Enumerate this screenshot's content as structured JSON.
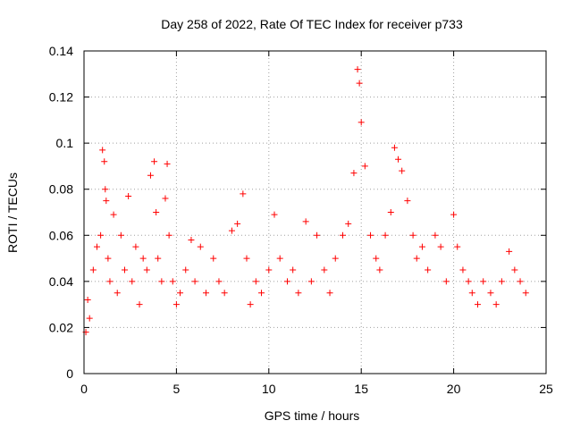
{
  "chart_data": {
    "type": "scatter",
    "title": "Day 258 of 2022, Rate Of TEC Index for receiver p733",
    "xlabel": "GPS time / hours",
    "ylabel": "ROTI / TECUs",
    "xlim": [
      0,
      25
    ],
    "ylim": [
      0,
      0.14
    ],
    "x_ticks": [
      "0",
      "5",
      "10",
      "15",
      "20",
      "25"
    ],
    "y_ticks": [
      "0",
      "0.02",
      "0.04",
      "0.06",
      "0.08",
      "0.1",
      "0.12",
      "0.14"
    ],
    "grid": true,
    "marker": "plus",
    "color": "#ff0000",
    "series": [
      {
        "x": [
          0.1,
          0.2,
          0.3,
          0.5,
          0.7,
          0.9,
          1.0,
          1.1,
          1.15,
          1.2,
          1.3,
          1.4,
          1.6,
          1.8,
          2.0,
          2.2,
          2.4,
          2.6,
          2.8,
          3.0,
          3.2,
          3.4,
          3.6,
          3.8,
          3.9,
          4.0,
          4.2,
          4.4,
          4.5,
          4.6,
          4.8,
          5.0,
          5.2,
          5.5,
          5.8,
          6.0,
          6.3,
          6.6,
          7.0,
          7.3,
          7.6,
          8.0,
          8.3,
          8.6,
          8.8,
          9.0,
          9.3,
          9.6,
          10.0,
          10.3,
          10.6,
          11.0,
          11.3,
          11.6,
          12.0,
          12.3,
          12.6,
          13.0,
          13.3,
          13.6,
          14.0,
          14.3,
          14.6,
          14.8,
          14.9,
          15.0,
          15.2,
          15.5,
          15.8,
          16.0,
          16.3,
          16.6,
          16.8,
          17.0,
          17.2,
          17.5,
          17.8,
          18.0,
          18.3,
          18.6,
          19.0,
          19.3,
          19.6,
          20.0,
          20.2,
          20.5,
          20.8,
          21.0,
          21.3,
          21.6,
          22.0,
          22.3,
          22.6,
          23.0,
          23.3,
          23.6,
          23.9
        ],
        "y": [
          0.018,
          0.032,
          0.024,
          0.045,
          0.055,
          0.06,
          0.097,
          0.092,
          0.08,
          0.075,
          0.05,
          0.04,
          0.069,
          0.035,
          0.06,
          0.045,
          0.077,
          0.04,
          0.055,
          0.03,
          0.05,
          0.045,
          0.086,
          0.092,
          0.07,
          0.05,
          0.04,
          0.076,
          0.091,
          0.06,
          0.04,
          0.03,
          0.035,
          0.045,
          0.058,
          0.04,
          0.055,
          0.035,
          0.05,
          0.04,
          0.035,
          0.062,
          0.065,
          0.078,
          0.05,
          0.03,
          0.04,
          0.035,
          0.045,
          0.069,
          0.05,
          0.04,
          0.045,
          0.035,
          0.066,
          0.04,
          0.06,
          0.045,
          0.035,
          0.05,
          0.06,
          0.065,
          0.087,
          0.132,
          0.126,
          0.109,
          0.09,
          0.06,
          0.05,
          0.045,
          0.06,
          0.07,
          0.098,
          0.093,
          0.088,
          0.075,
          0.06,
          0.05,
          0.055,
          0.045,
          0.06,
          0.055,
          0.04,
          0.069,
          0.055,
          0.045,
          0.04,
          0.035,
          0.03,
          0.04,
          0.035,
          0.03,
          0.04,
          0.053,
          0.045,
          0.04,
          0.035
        ]
      }
    ]
  }
}
